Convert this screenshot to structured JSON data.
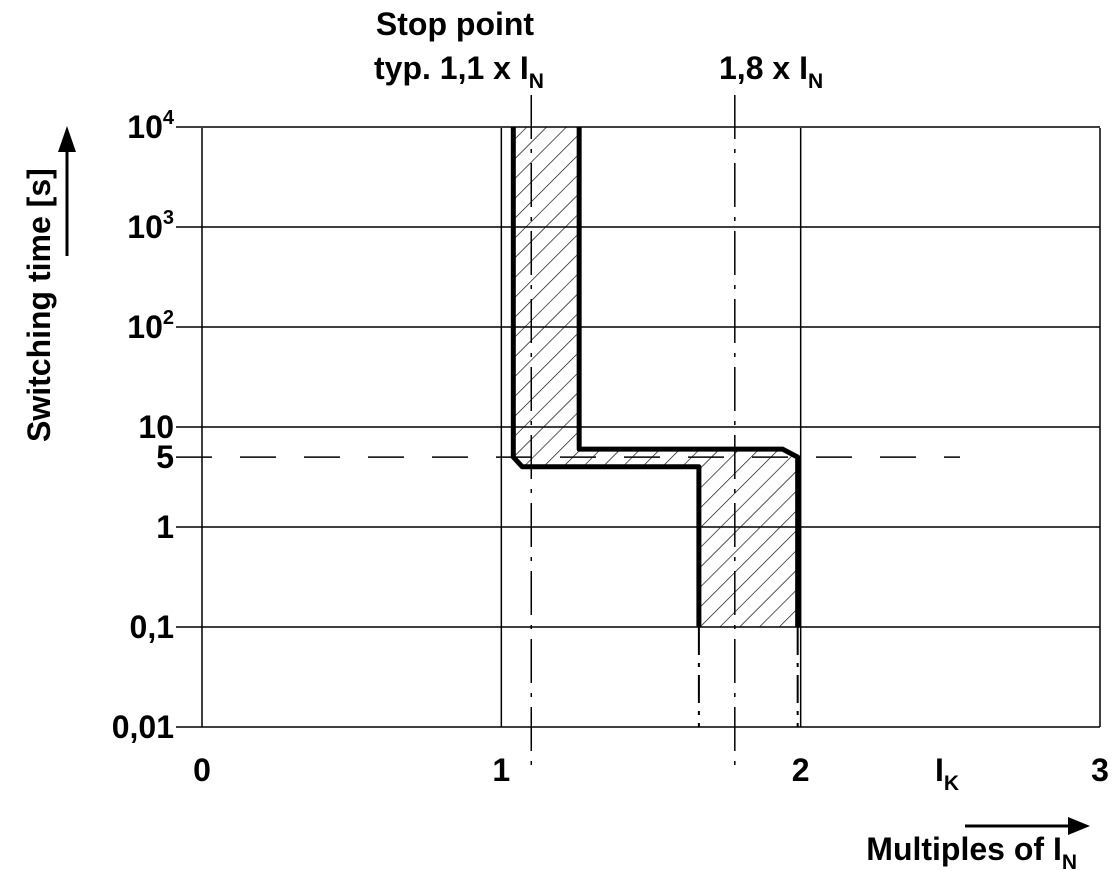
{
  "chart_data": {
    "type": "line",
    "title": "",
    "xlabel": "Multiples of I",
    "xlabel_sub": "N",
    "ylabel": "Switching time [s]",
    "x_ticks": [
      "0",
      "1",
      "2",
      "3"
    ],
    "x_tick_values": [
      0,
      1,
      2,
      3
    ],
    "x_variable": "I",
    "x_variable_sub": "K",
    "xlim": [
      0,
      3
    ],
    "y_scale": "log",
    "y_ticks": [
      {
        "value": 0.01,
        "label": "0,01"
      },
      {
        "value": 0.1,
        "label": "0,1"
      },
      {
        "value": 1,
        "label": "1"
      },
      {
        "value": 5,
        "label": "5"
      },
      {
        "value": 10,
        "label": "10"
      },
      {
        "value": 100,
        "label": "10",
        "sup": "2"
      },
      {
        "value": 1000,
        "label": "10",
        "sup": "3"
      },
      {
        "value": 10000,
        "label": "10",
        "sup": "4"
      }
    ],
    "ylim": [
      0.01,
      10000
    ],
    "grid": true,
    "annotations": [
      {
        "line1": "Stop point",
        "line2": "typ. 1,1 x I",
        "sub": "N",
        "x": 1.1
      },
      {
        "line2": "1,8 x I",
        "sub": "N",
        "x": 1.78
      }
    ],
    "reference_lines": {
      "horizontal_y": 5,
      "vertical_x": [
        1.1,
        1.78
      ]
    },
    "series": [
      {
        "points": [
          [
            1.04,
            10000
          ],
          [
            1.04,
            5
          ],
          [
            1.07,
            4
          ],
          [
            1.66,
            4
          ],
          [
            1.66,
            0.1
          ]
        ],
        "extension": [
          [
            1.66,
            0.1
          ],
          [
            1.66,
            0.01
          ]
        ]
      },
      {
        "points": [
          [
            1.26,
            10000
          ],
          [
            1.26,
            6
          ],
          [
            1.94,
            6
          ],
          [
            1.99,
            5
          ],
          [
            1.99,
            0.1
          ]
        ],
        "extension": [
          [
            1.99,
            0.1
          ],
          [
            1.99,
            0.01
          ]
        ]
      }
    ]
  }
}
